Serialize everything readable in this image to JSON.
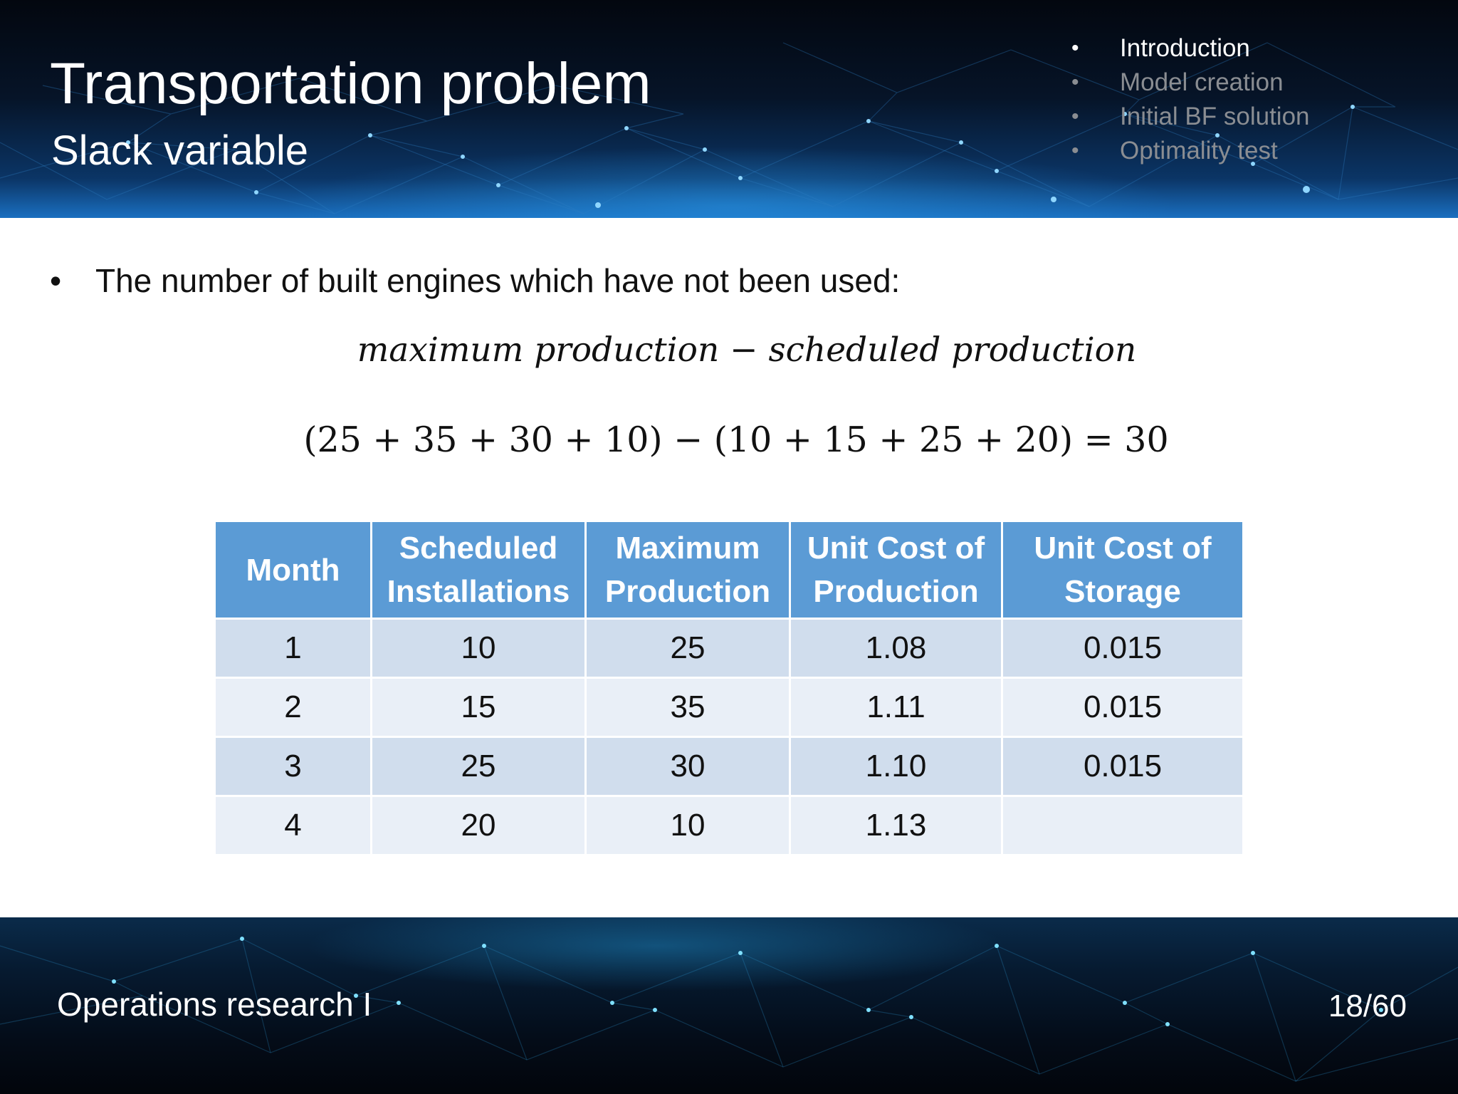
{
  "header": {
    "title": "Transportation problem",
    "subtitle": "Slack variable",
    "nav": [
      {
        "label": "Introduction",
        "active": true
      },
      {
        "label": "Model creation",
        "active": false
      },
      {
        "label": "Initial BF solution",
        "active": false
      },
      {
        "label": "Optimality test",
        "active": false
      }
    ],
    "bullet_glyph": "•"
  },
  "body": {
    "bullet_glyph": "•",
    "bullet_text": "The number of built engines  which have not been used:",
    "formula_text": "maximum production −  scheduled production",
    "formula_numeric": "(25 + 35 + 30 + 10) − (10 + 15 + 25 + 20) = 30"
  },
  "table": {
    "headers": [
      [
        "Month"
      ],
      [
        "Scheduled",
        "Installations"
      ],
      [
        "Maximum",
        "Production"
      ],
      [
        "Unit Cost of",
        "Production"
      ],
      [
        "Unit Cost of",
        "Storage"
      ]
    ],
    "rows": [
      [
        "1",
        "10",
        "25",
        "1.08",
        "0.015"
      ],
      [
        "2",
        "15",
        "35",
        "1.11",
        "0.015"
      ],
      [
        "3",
        "25",
        "30",
        "1.10",
        "0.015"
      ],
      [
        "4",
        "20",
        "10",
        "1.13",
        ""
      ]
    ],
    "header_color": "#5b9bd5",
    "row_color_odd": "#d0dded",
    "row_color_even": "#e9eff7"
  },
  "footer": {
    "course": "Operations research I",
    "page": "18/60"
  }
}
